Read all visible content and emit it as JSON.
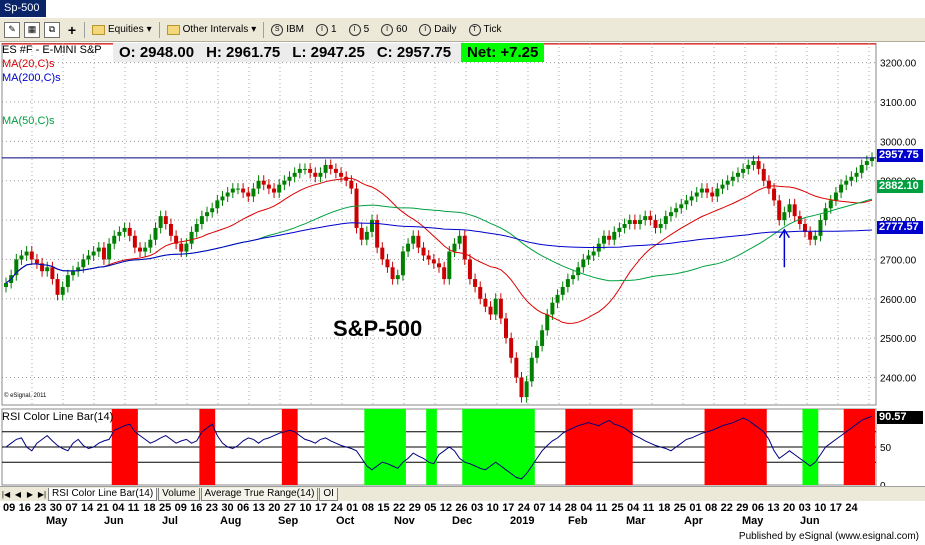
{
  "window": {
    "title": "Sp-500"
  },
  "toolbar": {
    "equities_label": "Equities",
    "other_intervals_label": "Other Intervals",
    "intervals": [
      {
        "icon": "S",
        "label": "IBM"
      },
      {
        "icon": "I",
        "label": "1"
      },
      {
        "icon": "I",
        "label": "5"
      },
      {
        "icon": "I",
        "label": "60"
      },
      {
        "icon": "I",
        "label": "Daily"
      },
      {
        "icon": "T",
        "label": "Tick"
      }
    ]
  },
  "header": {
    "symbol": "ES #F - E-MINI S&P",
    "open": "O:  2948.00",
    "high": "H:  2961.75",
    "low": "L:  2947.25",
    "close": "C:  2957.75",
    "net": "Net:  +7.25"
  },
  "studies": {
    "ma20": "MA(20,C)s",
    "ma200": "MA(200,C)s",
    "ma50": "MA(50,C)s",
    "rsi": "RSI Color Line Bar(14)",
    "copyright": "© eSignal, 2011"
  },
  "annotation": "S&P-500",
  "price_tags": {
    "last": "2957.75",
    "ma50": "2882.10",
    "ma200": "2777.57",
    "rsi": "90.57"
  },
  "colors": {
    "bull": "#008000",
    "bear": "#cc0000",
    "ma20": "#dd0000",
    "ma50": "#00a040",
    "ma200": "#0000cc",
    "rsi_hot": "#ff0000",
    "rsi_cold": "#00ff00",
    "net_bg": "#00ff00"
  },
  "chart_data": {
    "type": "line",
    "title": "S&P-500",
    "ylim": [
      2330,
      3250
    ],
    "y_ticks": [
      "3200.00",
      "3100.00",
      "3000.00",
      "2900.00",
      "2800.00",
      "2700.00",
      "2600.00",
      "2500.00",
      "2400.00"
    ],
    "rsi_ticks": [
      "50",
      "0"
    ],
    "close_series": [
      2640,
      2660,
      2700,
      2710,
      2720,
      2700,
      2690,
      2670,
      2680,
      2650,
      2610,
      2630,
      2660,
      2670,
      2680,
      2700,
      2710,
      2720,
      2730,
      2700,
      2740,
      2760,
      2770,
      2780,
      2760,
      2730,
      2720,
      2730,
      2750,
      2780,
      2810,
      2790,
      2760,
      2740,
      2720,
      2740,
      2770,
      2790,
      2810,
      2820,
      2830,
      2850,
      2860,
      2870,
      2880,
      2880,
      2870,
      2860,
      2880,
      2900,
      2890,
      2880,
      2870,
      2890,
      2900,
      2910,
      2920,
      2930,
      2930,
      2920,
      2910,
      2920,
      2940,
      2930,
      2920,
      2910,
      2900,
      2880,
      2780,
      2750,
      2770,
      2800,
      2730,
      2700,
      2680,
      2650,
      2660,
      2720,
      2740,
      2760,
      2730,
      2710,
      2700,
      2690,
      2680,
      2650,
      2720,
      2740,
      2760,
      2700,
      2650,
      2630,
      2600,
      2580,
      2560,
      2600,
      2550,
      2500,
      2450,
      2400,
      2350,
      2390,
      2450,
      2480,
      2520,
      2560,
      2590,
      2610,
      2630,
      2650,
      2660,
      2680,
      2700,
      2710,
      2720,
      2740,
      2760,
      2750,
      2770,
      2780,
      2790,
      2800,
      2790,
      2800,
      2810,
      2800,
      2780,
      2790,
      2810,
      2820,
      2830,
      2840,
      2850,
      2860,
      2870,
      2880,
      2870,
      2860,
      2880,
      2890,
      2900,
      2910,
      2920,
      2930,
      2940,
      2950,
      2930,
      2900,
      2880,
      2850,
      2800,
      2820,
      2840,
      2810,
      2790,
      2770,
      2750,
      2760,
      2800,
      2830,
      2850,
      2870,
      2890,
      2900,
      2910,
      2920,
      2940,
      2950,
      2958
    ],
    "rsi_series": [
      50,
      55,
      60,
      62,
      50,
      45,
      55,
      60,
      65,
      58,
      52,
      48,
      45,
      55,
      60,
      52,
      48,
      50,
      55,
      58,
      60,
      72,
      75,
      78,
      80,
      70,
      65,
      60,
      55,
      58,
      62,
      65,
      60,
      55,
      58,
      60,
      55,
      58,
      70,
      75,
      80,
      65,
      55,
      50,
      48,
      52,
      58,
      62,
      60,
      55,
      60,
      62,
      65,
      68,
      70,
      72,
      70,
      65,
      60,
      58,
      55,
      60,
      62,
      58,
      55,
      52,
      50,
      48,
      45,
      35,
      25,
      20,
      25,
      30,
      28,
      25,
      22,
      30,
      35,
      42,
      38,
      35,
      30,
      28,
      40,
      45,
      50,
      45,
      35,
      30,
      28,
      25,
      22,
      20,
      25,
      30,
      25,
      20,
      15,
      10,
      8,
      15,
      25,
      35,
      45,
      52,
      58,
      62,
      68,
      72,
      75,
      78,
      80,
      82,
      80,
      78,
      82,
      85,
      80,
      78,
      75,
      70,
      65,
      62,
      58,
      55,
      52,
      50,
      48,
      45,
      50,
      55,
      60,
      62,
      65,
      68,
      70,
      72,
      75,
      78,
      80,
      82,
      85,
      88,
      85,
      80,
      75,
      70,
      60,
      45,
      35,
      40,
      45,
      40,
      35,
      30,
      25,
      30,
      40,
      50,
      55,
      60,
      65,
      70,
      75,
      80,
      85,
      88,
      90.57
    ],
    "x_labels": [
      "09",
      "16",
      "23",
      "30",
      "07",
      "14",
      "21",
      "04",
      "11",
      "18",
      "25",
      "09",
      "16",
      "23",
      "30",
      "06",
      "13",
      "20",
      "27",
      "10",
      "17",
      "24",
      "01",
      "08",
      "15",
      "22",
      "29",
      "05",
      "12",
      "26",
      "03",
      "10",
      "17",
      "24",
      "07",
      "14",
      "28",
      "04",
      "11",
      "25",
      "04",
      "11",
      "18",
      "25",
      "01",
      "08",
      "22",
      "29",
      "06",
      "13",
      "20",
      "03",
      "10",
      "17",
      "24"
    ],
    "month_labels": [
      "May",
      "Jun",
      "Jul",
      "Aug",
      "Sep",
      "Oct",
      "Nov",
      "Dec",
      "2019",
      "Feb",
      "Mar",
      "Apr",
      "May",
      "Jun"
    ]
  },
  "tabs": [
    {
      "label": "RSI Color Line Bar(14)"
    },
    {
      "label": "Volume"
    },
    {
      "label": "Average True Range(14)"
    },
    {
      "label": "OI"
    }
  ],
  "footer": {
    "published": "Published by eSignal (www.esignal.com)"
  }
}
